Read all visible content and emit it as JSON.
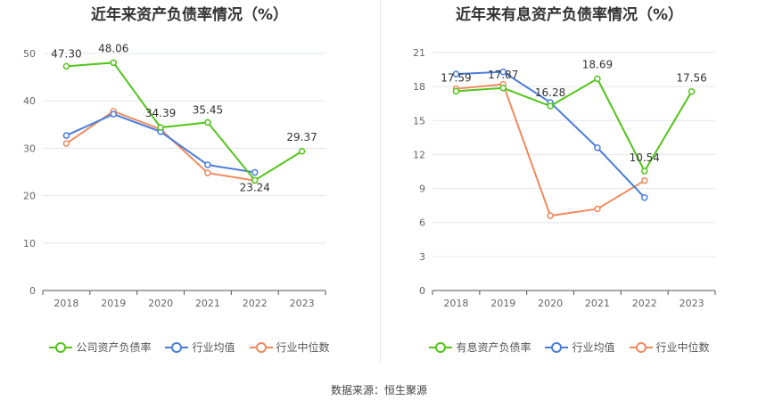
{
  "chart_data": [
    {
      "type": "line",
      "title": "近年来资产负债率情况（%）",
      "categories": [
        "2018",
        "2019",
        "2020",
        "2021",
        "2022",
        "2023"
      ],
      "ylim": [
        0,
        50
      ],
      "yticks": [
        0,
        10,
        20,
        30,
        40,
        50
      ],
      "grid": true,
      "legend_position": "bottom",
      "series": [
        {
          "name": "公司资产负债率",
          "color": "#52c41a",
          "values": [
            47.3,
            48.06,
            34.39,
            35.45,
            23.24,
            29.37
          ],
          "labels": [
            "47.30",
            "48.06",
            "34.39",
            "35.45",
            "23.24",
            "29.37"
          ]
        },
        {
          "name": "行业均值",
          "color": "#4a7ddb",
          "values": [
            32.7,
            37.2,
            33.5,
            26.5,
            24.9,
            null
          ]
        },
        {
          "name": "行业中位数",
          "color": "#f08a5d",
          "values": [
            31.0,
            37.8,
            34.0,
            24.8,
            23.2,
            null
          ]
        }
      ]
    },
    {
      "type": "line",
      "title": "近年来有息资产负债率情况（%）",
      "categories": [
        "2018",
        "2019",
        "2020",
        "2021",
        "2022",
        "2023"
      ],
      "ylim": [
        0,
        21
      ],
      "yticks": [
        0,
        3,
        6,
        9,
        12,
        15,
        18,
        21
      ],
      "grid": true,
      "legend_position": "bottom",
      "series": [
        {
          "name": "有息资产负债率",
          "color": "#52c41a",
          "values": [
            17.59,
            17.87,
            16.28,
            18.69,
            10.54,
            17.56
          ],
          "labels": [
            "17.59",
            "17.87",
            "16.28",
            "18.69",
            "10.54",
            "17.56"
          ]
        },
        {
          "name": "行业均值",
          "color": "#4a7ddb",
          "values": [
            19.1,
            19.3,
            16.6,
            12.6,
            8.2,
            null
          ]
        },
        {
          "name": "行业中位数",
          "color": "#f08a5d",
          "values": [
            17.8,
            18.2,
            6.6,
            7.2,
            9.7,
            null
          ]
        }
      ]
    }
  ],
  "source_text": "数据来源：恒生聚源"
}
